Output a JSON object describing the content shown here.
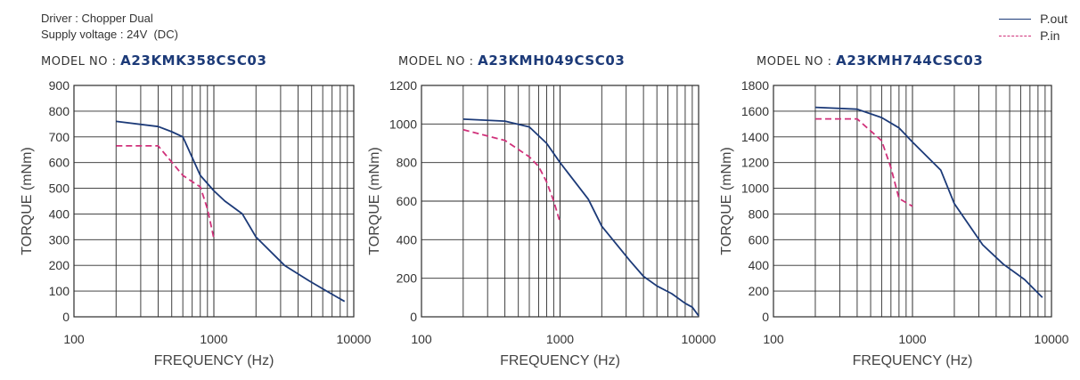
{
  "header": {
    "driver": "Driver : Chopper Dual",
    "supply": "Supply voltage : 24V  (DC)"
  },
  "legend": [
    {
      "label": "P.out",
      "style": "solid",
      "color": "#1c3a78"
    },
    {
      "label": "P.in",
      "style": "dashed",
      "color": "#d0317a"
    }
  ],
  "model_prefix": "MODEL NO : ",
  "chart_data": [
    {
      "type": "line",
      "model": "A23KMK358CSC03",
      "xlabel": "FREQUENCY (Hz)",
      "ylabel": "TORQUE (mNm)",
      "xscale": "log",
      "xlim": [
        100,
        10000
      ],
      "xticks": [
        100,
        1000,
        10000
      ],
      "ylim": [
        0,
        900
      ],
      "yticks": [
        0,
        100,
        200,
        300,
        400,
        500,
        600,
        700,
        800,
        900
      ],
      "grid": true,
      "series": [
        {
          "name": "P.out",
          "color": "#1c3a78",
          "style": "solid",
          "x": [
            200,
            400,
            500,
            600,
            800,
            1000,
            1200,
            1600,
            2000,
            3200,
            4800,
            6400,
            8600
          ],
          "y": [
            760,
            740,
            720,
            700,
            550,
            490,
            450,
            400,
            310,
            200,
            140,
            100,
            60
          ]
        },
        {
          "name": "P.in",
          "color": "#d0317a",
          "style": "dashed",
          "x": [
            200,
            400,
            600,
            800,
            900,
            1000
          ],
          "y": [
            665,
            665,
            550,
            505,
            420,
            305
          ]
        }
      ]
    },
    {
      "type": "line",
      "model": "A23KMH049CSC03",
      "xlabel": "FREQUENCY (Hz)",
      "ylabel": "TORQUE (mNm)",
      "xscale": "log",
      "xlim": [
        100,
        10000
      ],
      "xticks": [
        100,
        1000,
        10000
      ],
      "ylim": [
        0,
        1200
      ],
      "yticks": [
        0,
        200,
        400,
        600,
        800,
        1000,
        1200
      ],
      "grid": true,
      "series": [
        {
          "name": "P.out",
          "color": "#1c3a78",
          "style": "solid",
          "x": [
            200,
            400,
            600,
            800,
            1000,
            1600,
            2000,
            3200,
            4000,
            5000,
            6400,
            8000,
            9000,
            10000
          ],
          "y": [
            1025,
            1015,
            985,
            900,
            800,
            610,
            470,
            290,
            210,
            160,
            120,
            70,
            50,
            5
          ]
        },
        {
          "name": "P.in",
          "color": "#d0317a",
          "style": "dashed",
          "x": [
            200,
            400,
            600,
            700,
            800,
            900,
            1000
          ],
          "y": [
            970,
            915,
            830,
            780,
            700,
            600,
            490
          ]
        }
      ]
    },
    {
      "type": "line",
      "model": "A23KMH744CSC03",
      "xlabel": "FREQUENCY (Hz)",
      "ylabel": "TORQUE (mNm)",
      "xscale": "log",
      "xlim": [
        100,
        10000
      ],
      "xticks": [
        100,
        1000,
        10000
      ],
      "ylim": [
        0,
        1800
      ],
      "yticks": [
        0,
        200,
        400,
        600,
        800,
        1000,
        1200,
        1400,
        1600,
        1800
      ],
      "grid": true,
      "series": [
        {
          "name": "P.out",
          "color": "#1c3a78",
          "style": "solid",
          "x": [
            200,
            400,
            600,
            800,
            1000,
            1600,
            2000,
            3200,
            4500,
            6400,
            8600
          ],
          "y": [
            1630,
            1615,
            1550,
            1470,
            1360,
            1140,
            880,
            560,
            410,
            290,
            150
          ]
        },
        {
          "name": "P.in",
          "color": "#d0317a",
          "style": "dashed",
          "x": [
            200,
            400,
            600,
            700,
            800,
            1000
          ],
          "y": [
            1540,
            1540,
            1370,
            1160,
            920,
            860
          ]
        }
      ]
    }
  ]
}
